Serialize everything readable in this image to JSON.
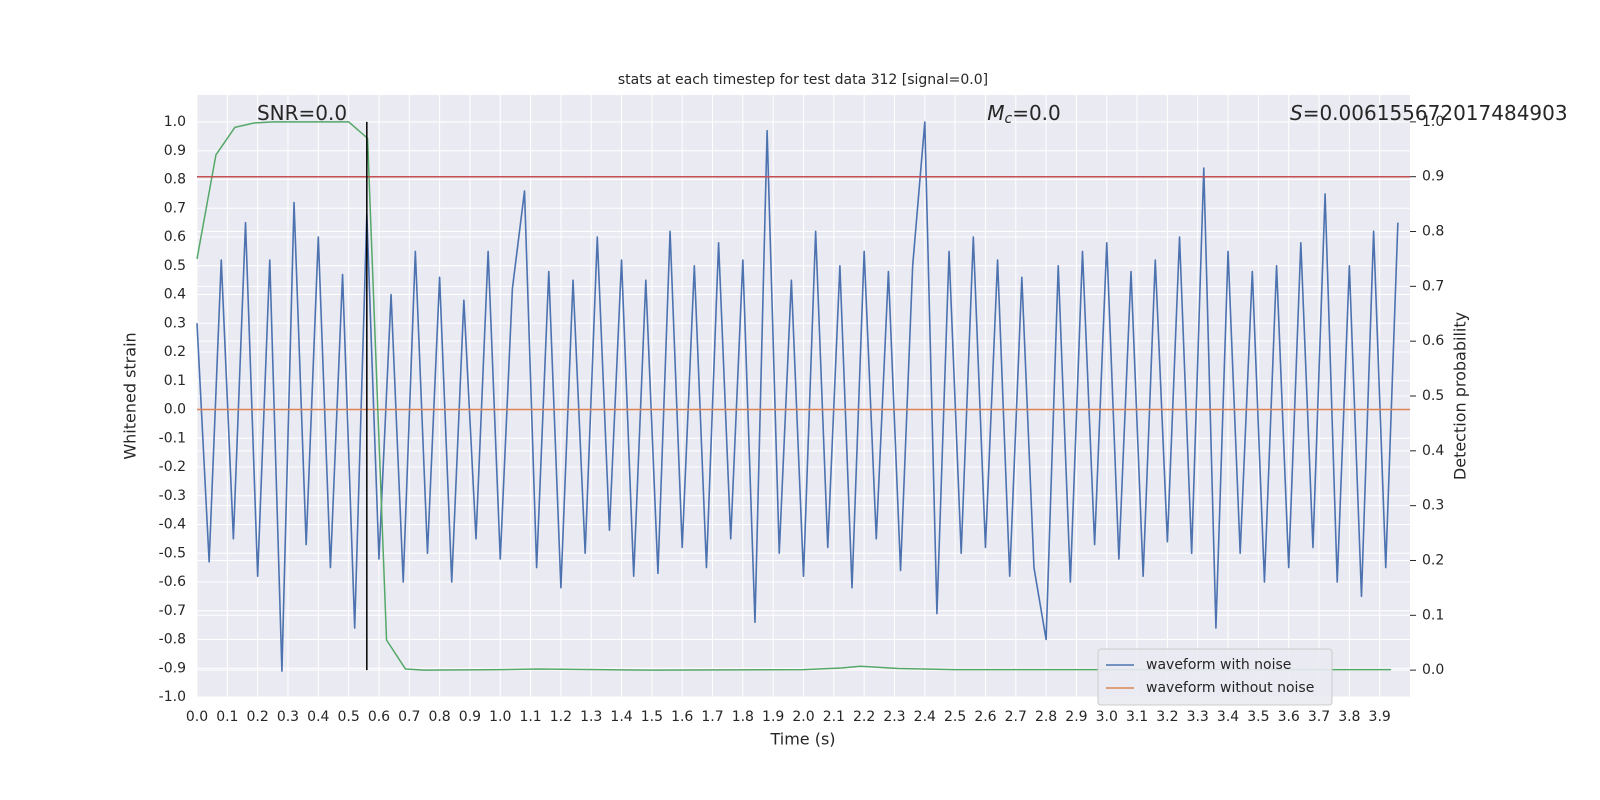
{
  "chart_data": {
    "type": "line",
    "title": "stats at each timestep for test data 312 [signal=0.0]",
    "x_label": "Time (s)",
    "y_label": "Whitened strain",
    "y2_label": "Detection probability",
    "xlim": [
      0,
      4.0
    ],
    "ylim": [
      -1.0,
      1.094
    ],
    "y2lim": [
      -0.049,
      1.049
    ],
    "grid": true,
    "legend": "lower right",
    "xticks": [
      {
        "value": 0,
        "label": "0.0"
      },
      {
        "value": 0.1,
        "label": "0.1"
      },
      {
        "value": 0.2,
        "label": "0.2"
      },
      {
        "value": 0.3,
        "label": "0.3"
      },
      {
        "value": 0.4,
        "label": "0.4"
      },
      {
        "value": 0.5,
        "label": "0.5"
      },
      {
        "value": 0.6,
        "label": "0.6"
      },
      {
        "value": 0.7,
        "label": "0.7"
      },
      {
        "value": 0.8,
        "label": "0.8"
      },
      {
        "value": 0.9,
        "label": "0.9"
      },
      {
        "value": 1,
        "label": "1.0"
      },
      {
        "value": 1.1,
        "label": "1.1"
      },
      {
        "value": 1.2,
        "label": "1.2"
      },
      {
        "value": 1.3,
        "label": "1.3"
      },
      {
        "value": 1.4,
        "label": "1.4"
      },
      {
        "value": 1.5,
        "label": "1.5"
      },
      {
        "value": 1.6,
        "label": "1.6"
      },
      {
        "value": 1.7,
        "label": "1.7"
      },
      {
        "value": 1.8,
        "label": "1.8"
      },
      {
        "value": 1.9,
        "label": "1.9"
      },
      {
        "value": 2,
        "label": "2.0"
      },
      {
        "value": 2.1,
        "label": "2.1"
      },
      {
        "value": 2.2,
        "label": "2.2"
      },
      {
        "value": 2.3,
        "label": "2.3"
      },
      {
        "value": 2.4,
        "label": "2.4"
      },
      {
        "value": 2.5,
        "label": "2.5"
      },
      {
        "value": 2.6,
        "label": "2.6"
      },
      {
        "value": 2.7,
        "label": "2.7"
      },
      {
        "value": 2.8,
        "label": "2.8"
      },
      {
        "value": 2.9,
        "label": "2.9"
      },
      {
        "value": 3,
        "label": "3.0"
      },
      {
        "value": 3.1,
        "label": "3.1"
      },
      {
        "value": 3.2,
        "label": "3.2"
      },
      {
        "value": 3.3,
        "label": "3.3"
      },
      {
        "value": 3.4,
        "label": "3.4"
      },
      {
        "value": 3.5,
        "label": "3.5"
      },
      {
        "value": 3.6,
        "label": "3.6"
      },
      {
        "value": 3.7,
        "label": "3.7"
      },
      {
        "value": 3.8,
        "label": "3.8"
      },
      {
        "value": 3.9,
        "label": "3.9"
      }
    ],
    "yticks": [
      {
        "value": -1,
        "label": "-1.0"
      },
      {
        "value": -0.9,
        "label": "-0.9"
      },
      {
        "value": -0.8,
        "label": "-0.8"
      },
      {
        "value": -0.7,
        "label": "-0.7"
      },
      {
        "value": -0.6,
        "label": "-0.6"
      },
      {
        "value": -0.5,
        "label": "-0.5"
      },
      {
        "value": -0.4,
        "label": "-0.4"
      },
      {
        "value": -0.3,
        "label": "-0.3"
      },
      {
        "value": -0.2,
        "label": "-0.2"
      },
      {
        "value": -0.1,
        "label": "-0.1"
      },
      {
        "value": 0,
        "label": "0.0"
      },
      {
        "value": 0.1,
        "label": "0.1"
      },
      {
        "value": 0.2,
        "label": "0.2"
      },
      {
        "value": 0.3,
        "label": "0.3"
      },
      {
        "value": 0.4,
        "label": "0.4"
      },
      {
        "value": 0.5,
        "label": "0.5"
      },
      {
        "value": 0.6,
        "label": "0.6"
      },
      {
        "value": 0.7,
        "label": "0.7"
      },
      {
        "value": 0.8,
        "label": "0.8"
      },
      {
        "value": 0.9,
        "label": "0.9"
      },
      {
        "value": 1,
        "label": "1.0"
      }
    ],
    "y2ticks": [
      {
        "value": 0,
        "label": "0.0"
      },
      {
        "value": 0.1,
        "label": "0.1"
      },
      {
        "value": 0.2,
        "label": "0.2"
      },
      {
        "value": 0.3,
        "label": "0.3"
      },
      {
        "value": 0.4,
        "label": "0.4"
      },
      {
        "value": 0.5,
        "label": "0.5"
      },
      {
        "value": 0.6,
        "label": "0.6"
      },
      {
        "value": 0.7,
        "label": "0.7"
      },
      {
        "value": 0.8,
        "label": "0.8"
      },
      {
        "value": 0.9,
        "label": "0.9"
      },
      {
        "value": 1,
        "label": "1.0"
      }
    ],
    "series": [
      {
        "name": "waveform with noise",
        "color": "#4c72b0",
        "x": [
          0,
          0.04,
          0.08,
          0.12,
          0.16,
          0.2,
          0.24,
          0.28,
          0.32,
          0.36,
          0.4,
          0.44,
          0.48,
          0.52,
          0.56,
          0.6,
          0.64,
          0.68,
          0.72,
          0.76,
          0.8,
          0.84,
          0.88,
          0.92,
          0.96,
          1.0,
          1.04,
          1.08,
          1.12,
          1.16,
          1.2,
          1.24,
          1.28,
          1.32,
          1.36,
          1.4,
          1.44,
          1.48,
          1.52,
          1.56,
          1.6,
          1.64,
          1.68,
          1.72,
          1.76,
          1.8,
          1.84,
          1.88,
          1.92,
          1.96,
          2.0,
          2.04,
          2.08,
          2.12,
          2.16,
          2.2,
          2.24,
          2.28,
          2.32,
          2.36,
          2.4,
          2.44,
          2.48,
          2.52,
          2.56,
          2.6,
          2.64,
          2.68,
          2.72,
          2.76,
          2.8,
          2.84,
          2.88,
          2.92,
          2.96,
          3.0,
          3.04,
          3.08,
          3.12,
          3.16,
          3.2,
          3.24,
          3.28,
          3.32,
          3.36,
          3.4,
          3.44,
          3.48,
          3.52,
          3.56,
          3.6,
          3.64,
          3.68,
          3.72,
          3.76,
          3.8,
          3.84,
          3.88,
          3.92,
          3.96
        ],
        "values": [
          0.3,
          -0.53,
          0.52,
          -0.45,
          0.65,
          -0.58,
          0.52,
          -0.91,
          0.72,
          -0.47,
          0.6,
          -0.55,
          0.47,
          -0.76,
          0.68,
          -0.52,
          0.4,
          -0.6,
          0.55,
          -0.5,
          0.46,
          -0.6,
          0.38,
          -0.45,
          0.55,
          -0.52,
          0.42,
          0.76,
          -0.55,
          0.48,
          -0.62,
          0.45,
          -0.5,
          0.6,
          -0.42,
          0.52,
          -0.58,
          0.45,
          -0.57,
          0.62,
          -0.48,
          0.5,
          -0.55,
          0.58,
          -0.45,
          0.52,
          -0.74,
          0.97,
          -0.5,
          0.45,
          -0.58,
          0.62,
          -0.48,
          0.5,
          -0.62,
          0.55,
          -0.45,
          0.48,
          -0.56,
          0.5,
          1.0,
          -0.71,
          0.55,
          -0.5,
          0.6,
          -0.48,
          0.52,
          -0.58,
          0.46,
          -0.55,
          -0.8,
          0.5,
          -0.6,
          0.55,
          -0.47,
          0.58,
          -0.52,
          0.48,
          -0.58,
          0.52,
          -0.46,
          0.6,
          -0.5,
          0.84,
          -0.76,
          0.55,
          -0.5,
          0.48,
          -0.6,
          0.5,
          -0.55,
          0.58,
          -0.48,
          0.75,
          -0.6,
          0.5,
          -0.65,
          0.62,
          -0.55,
          0.65
        ]
      },
      {
        "name": "waveform without noise",
        "color": "#dd8452",
        "x": [
          0,
          4.0
        ],
        "values": [
          0,
          0
        ]
      },
      {
        "color": "#55a868",
        "axis": "y2",
        "x": [
          0,
          0.0625,
          0.125,
          0.1875,
          0.25,
          0.5,
          0.5625,
          0.625,
          0.6875,
          0.75,
          1.0,
          1.125,
          1.5,
          2.0,
          2.125,
          2.1875,
          2.3125,
          2.5,
          3.0,
          3.5,
          3.9375
        ],
        "values": [
          0.75,
          0.94,
          0.99,
          0.998,
          1.0,
          1.0,
          0.97,
          0.055,
          0.002,
          0.0,
          0.001,
          0.002,
          0.0,
          0.001,
          0.004,
          0.007,
          0.003,
          0.001,
          0.001,
          0.001,
          0.001
        ]
      }
    ],
    "hline": {
      "value": 0.9,
      "axis": "y2",
      "color": "#c44e52"
    },
    "vline": {
      "x": 0.56,
      "ymin": 0,
      "ymax": 1,
      "axis": "y2",
      "color": "#000000"
    },
    "annotations": [
      {
        "text": "SNR=0.0"
      },
      {
        "symbol": "M",
        "subscript": "c",
        "text": "=0.0"
      },
      {
        "symbol": "S",
        "text": "=0.006155672017484903"
      }
    ]
  }
}
